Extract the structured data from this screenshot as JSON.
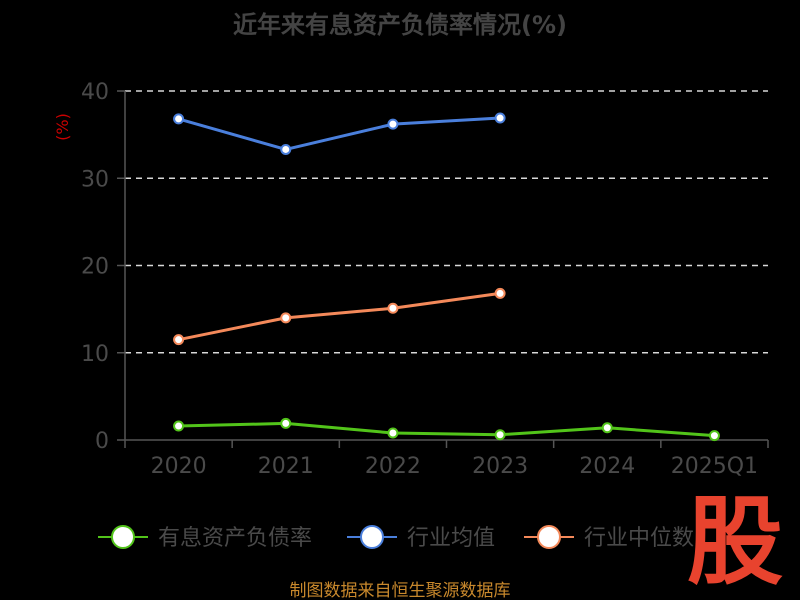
{
  "chart_data": {
    "type": "line",
    "title": "近年来有息资产负债率情况(%)",
    "ylabel": "(%)",
    "categories": [
      "2020",
      "2021",
      "2022",
      "2023",
      "2024",
      "2025Q1"
    ],
    "ylim": [
      0,
      40
    ],
    "yticks": [
      0,
      10,
      20,
      30,
      40
    ],
    "grid": true,
    "legend_position": "bottom",
    "series": [
      {
        "name": "有息资产负债率",
        "color": "#52c41a",
        "values": [
          1.6,
          1.9,
          0.8,
          0.6,
          1.4,
          0.5
        ]
      },
      {
        "name": "行业均值",
        "color": "#4a7fdc",
        "values": [
          36.8,
          33.3,
          36.2,
          36.9,
          null,
          null
        ]
      },
      {
        "name": "行业中位数",
        "color": "#f4895a",
        "values": [
          11.5,
          14.0,
          15.1,
          16.8,
          null,
          null
        ]
      }
    ]
  },
  "source": "制图数据来自恒生聚源数据库",
  "logo": "股"
}
